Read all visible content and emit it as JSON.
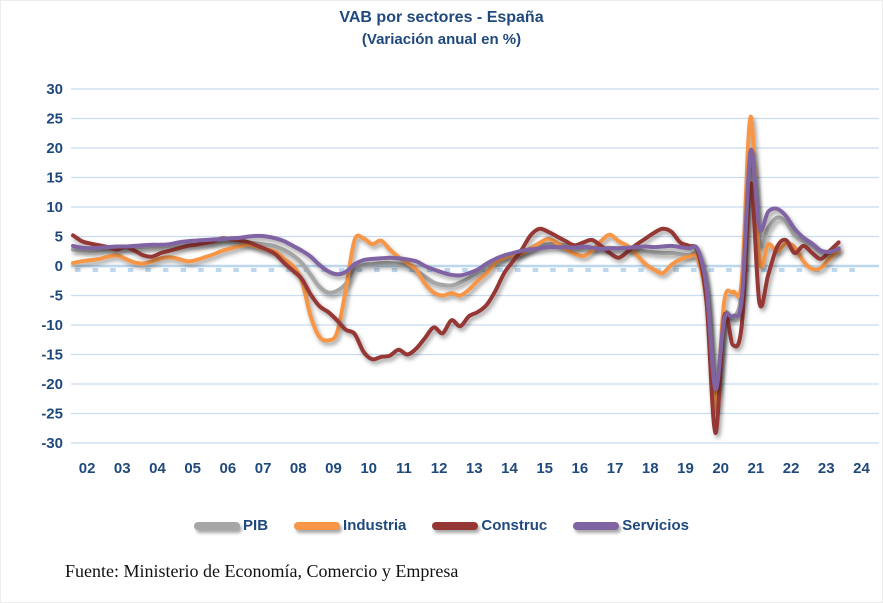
{
  "figure": {
    "title": "VAB por sectores - España",
    "subtitle": "(Variación anual en %)",
    "source_note": "Fuente: Ministerio de Economía, Comercio y Empresa"
  },
  "colors": {
    "title_text": "#1F497D",
    "axis_text": "#1F497D",
    "gridline": "#C9DCF0",
    "axis_line": "#BDD7EE",
    "background": "#FFFFFF"
  },
  "chart_data": {
    "type": "line",
    "title": "VAB por sectores - España",
    "subtitle": "(Variación anual en %)",
    "ylabel": "",
    "xlabel": "",
    "unit": "% variación anual",
    "frequency": "quarterly",
    "x_start_year": 2002,
    "x_tick_labels": [
      "02",
      "03",
      "04",
      "05",
      "06",
      "07",
      "08",
      "09",
      "10",
      "11",
      "12",
      "13",
      "14",
      "15",
      "16",
      "17",
      "18",
      "19",
      "20",
      "21",
      "22",
      "23",
      "24"
    ],
    "ylim": [
      -30,
      30
    ],
    "ytick_step": 5,
    "ytick_labels": [
      "30",
      "25",
      "20",
      "15",
      "10",
      "5",
      "0",
      "-5",
      "-10",
      "-15",
      "-20",
      "-25",
      "-30"
    ],
    "grid": "horizontal",
    "legend_position": "bottom",
    "smoothed": true,
    "series": [
      {
        "name": "PIB",
        "color": "#A6A6A6",
        "values": [
          2.8,
          2.7,
          2.6,
          2.7,
          2.9,
          3.0,
          3.1,
          3.2,
          3.2,
          3.3,
          3.3,
          3.4,
          3.5,
          3.7,
          3.8,
          3.9,
          4.0,
          4.1,
          4.1,
          4.0,
          3.9,
          3.8,
          3.6,
          3.3,
          2.7,
          1.8,
          0.5,
          -1.5,
          -3.5,
          -4.5,
          -4.2,
          -3.0,
          -0.5,
          0.2,
          0.3,
          0.5,
          0.5,
          0.3,
          0.0,
          -0.8,
          -1.8,
          -2.8,
          -3.2,
          -3.3,
          -2.8,
          -2.0,
          -1.0,
          0.2,
          1.0,
          1.5,
          2.0,
          2.3,
          3.0,
          3.5,
          3.7,
          3.7,
          3.5,
          3.3,
          3.2,
          3.0,
          3.0,
          3.1,
          3.0,
          3.0,
          2.8,
          2.5,
          2.3,
          2.2,
          2.2,
          2.0,
          1.8,
          1.7,
          -4.2,
          -21.8,
          -8.6,
          -8.8,
          -4.3,
          17.5,
          3.8,
          6.5,
          8.2,
          7.5,
          5.2,
          4.2,
          3.5,
          2.3,
          2.2,
          3.0
        ]
      },
      {
        "name": "Industria",
        "color": "#F79646",
        "values": [
          0.5,
          0.8,
          1.0,
          1.2,
          1.6,
          1.8,
          1.2,
          0.6,
          0.4,
          0.8,
          1.3,
          1.5,
          1.2,
          0.8,
          1.0,
          1.5,
          2.0,
          2.6,
          3.0,
          3.4,
          3.6,
          3.2,
          2.8,
          2.4,
          1.2,
          0.0,
          -2.5,
          -8.5,
          -12.0,
          -12.6,
          -11.3,
          -4.0,
          4.4,
          4.7,
          3.7,
          4.3,
          2.8,
          1.5,
          0.5,
          -0.6,
          -3.0,
          -4.5,
          -5.0,
          -4.6,
          -5.0,
          -4.0,
          -2.5,
          -1.2,
          0.5,
          1.4,
          1.8,
          2.1,
          3.0,
          3.9,
          4.6,
          3.9,
          2.9,
          2.1,
          1.7,
          2.6,
          4.2,
          5.3,
          4.2,
          3.4,
          2.0,
          0.4,
          -0.6,
          -1.2,
          0.2,
          1.1,
          1.6,
          1.2,
          -6.3,
          -24.5,
          -6.0,
          -4.4,
          -2.5,
          25.3,
          1.0,
          3.7,
          2.5,
          3.8,
          3.2,
          0.8,
          -0.5,
          -0.3,
          1.3,
          2.6
        ]
      },
      {
        "name": "Construc",
        "color": "#953735",
        "values": [
          5.2,
          4.2,
          3.8,
          3.5,
          3.2,
          2.8,
          3.2,
          2.6,
          1.8,
          1.6,
          2.2,
          2.6,
          3.0,
          3.4,
          3.6,
          3.9,
          4.2,
          4.7,
          4.5,
          4.3,
          4.0,
          3.4,
          2.8,
          2.0,
          0.5,
          -0.8,
          -2.2,
          -4.8,
          -6.8,
          -7.8,
          -9.2,
          -10.8,
          -11.5,
          -14.5,
          -15.8,
          -15.4,
          -15.2,
          -14.2,
          -15.0,
          -14.0,
          -12.2,
          -10.4,
          -11.4,
          -9.2,
          -10.2,
          -8.5,
          -7.8,
          -6.6,
          -4.2,
          -1.2,
          0.8,
          2.8,
          5.2,
          6.3,
          5.8,
          5.0,
          4.2,
          3.5,
          4.0,
          4.4,
          3.4,
          2.2,
          1.4,
          2.4,
          3.6,
          4.6,
          5.6,
          6.3,
          5.8,
          4.0,
          3.4,
          2.4,
          -6.2,
          -28.3,
          -8.6,
          -13.4,
          -10.0,
          14.0,
          -6.2,
          -1.5,
          3.2,
          4.4,
          2.2,
          3.4,
          2.2,
          1.2,
          2.6,
          4.0
        ]
      },
      {
        "name": "Servicios",
        "color": "#8064A2",
        "values": [
          3.4,
          3.1,
          3.0,
          3.1,
          3.2,
          3.3,
          3.3,
          3.4,
          3.5,
          3.6,
          3.6,
          3.7,
          4.0,
          4.2,
          4.3,
          4.4,
          4.5,
          4.6,
          4.7,
          4.8,
          5.0,
          5.1,
          5.0,
          4.7,
          4.2,
          3.4,
          2.6,
          1.6,
          0.2,
          -0.9,
          -1.4,
          -1.0,
          0.3,
          1.0,
          1.2,
          1.3,
          1.4,
          1.3,
          1.1,
          0.8,
          0.0,
          -0.6,
          -1.1,
          -1.5,
          -1.6,
          -1.2,
          -0.6,
          0.4,
          1.2,
          1.8,
          2.2,
          2.6,
          2.8,
          3.0,
          3.2,
          3.2,
          3.2,
          3.1,
          3.3,
          3.1,
          2.9,
          3.0,
          3.0,
          3.1,
          3.2,
          3.3,
          3.2,
          3.3,
          3.4,
          3.2,
          3.0,
          2.8,
          -3.8,
          -20.8,
          -9.0,
          -8.5,
          -5.5,
          19.5,
          6.5,
          9.2,
          9.7,
          8.5,
          6.3,
          4.8,
          3.8,
          2.6,
          2.4,
          2.9
        ]
      }
    ]
  }
}
